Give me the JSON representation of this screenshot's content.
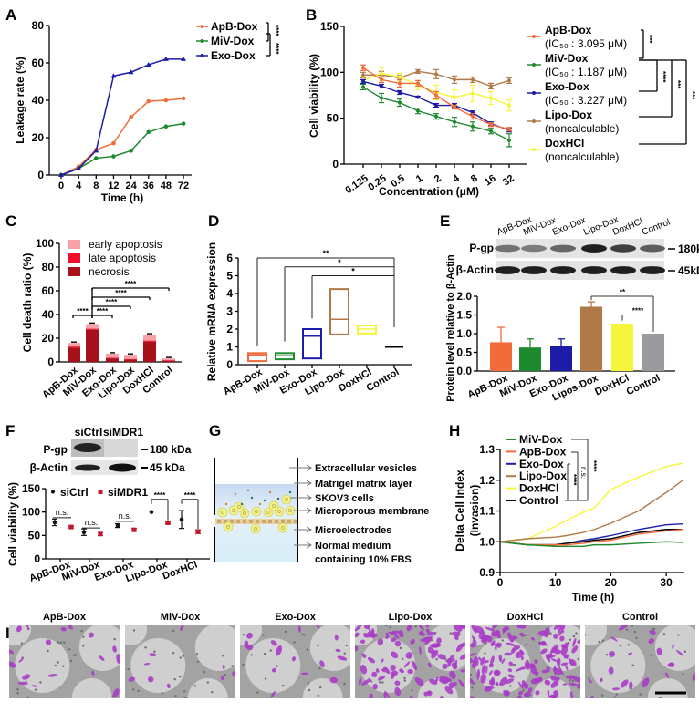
{
  "panel_labels": {
    "A": "A",
    "B": "B",
    "C": "C",
    "D": "D",
    "E": "E",
    "F": "F",
    "G": "G",
    "H": "H",
    "I": "I"
  },
  "colors": {
    "ApB-Dox": "#f26b3a",
    "MiV-Dox": "#1e8a2e",
    "Exo-Dox": "#1c1ca8",
    "Lipo-Dox": "#b07a48",
    "DoxHCl": "#f5f53a",
    "Control": "#000000",
    "Control_bar": "#9a9a9f",
    "early": "#f7a1a8",
    "late": "#f0102e",
    "necrosis": "#a8101c",
    "siCtrl": "#111111",
    "siMDR1": "#c0182c",
    "stain": "#a83cc8"
  },
  "chart_data": [
    {
      "type": "line",
      "panel": "A",
      "categories": [
        "0",
        "4",
        "8",
        "12",
        "24",
        "36",
        "48",
        "72"
      ],
      "xlabel": "Time (h)",
      "ylabel": "Leakage rate (%)",
      "ylim": [
        0,
        80
      ],
      "yticks": [
        0,
        20,
        40,
        60,
        80
      ],
      "series": [
        {
          "name": "ApB-Dox",
          "values": [
            0,
            4.5,
            13.5,
            17,
            31,
            39.5,
            40,
            41
          ]
        },
        {
          "name": "MiV-Dox",
          "values": [
            0,
            3.5,
            9,
            10,
            13,
            23,
            26,
            27.5
          ]
        },
        {
          "name": "Exo-Dox",
          "values": [
            0,
            3.5,
            13,
            53,
            55,
            59,
            62,
            62
          ]
        }
      ],
      "significance": [
        "****",
        "****"
      ]
    },
    {
      "type": "line",
      "panel": "B",
      "categories": [
        "0.125",
        "0.25",
        "0.5",
        "1",
        "2",
        "4",
        "8",
        "16",
        "32"
      ],
      "xlabel": "Concentration (μM)",
      "ylabel": "Cell viability (%)",
      "ylim": [
        0,
        150
      ],
      "yticks": [
        0,
        50,
        100,
        150
      ],
      "series": [
        {
          "name": "ApB-Dox",
          "note": "(IC₅₀ : 3.095 μM)",
          "values": [
            105,
            92,
            88,
            88,
            75,
            62,
            52,
            43,
            38
          ],
          "errors": [
            3,
            3,
            4,
            3,
            4,
            2,
            3,
            2,
            2
          ]
        },
        {
          "name": "MiV-Dox",
          "note": "(IC₅₀ : 1.187 μM)",
          "values": [
            84,
            72,
            67,
            58,
            52,
            46,
            41,
            36,
            26
          ],
          "errors": [
            3,
            5,
            4,
            3,
            3,
            5,
            5,
            3,
            7
          ]
        },
        {
          "name": "Exo-Dox",
          "note": "(IC₅₀ : 3.227 μM)",
          "values": [
            90,
            85,
            78,
            73,
            64,
            64,
            56,
            44,
            37
          ],
          "errors": [
            2,
            2,
            2,
            1,
            2,
            2,
            2,
            2,
            2
          ]
        },
        {
          "name": "Lipo-Dox",
          "note": "(noncalculable)",
          "values": [
            97,
            97,
            94,
            101,
            98,
            92,
            92,
            85,
            91
          ],
          "errors": [
            3,
            4,
            3,
            2,
            5,
            4,
            3,
            3,
            3
          ]
        },
        {
          "name": "DoxHCl",
          "note": "(noncalculable)",
          "values": [
            91,
            99,
            95,
            86,
            78,
            73,
            77,
            72,
            64
          ],
          "errors": [
            4,
            6,
            4,
            5,
            8,
            8,
            9,
            7,
            6
          ]
        }
      ],
      "significance": [
        "***",
        "****",
        "***",
        "***"
      ]
    },
    {
      "type": "bar",
      "stacked": true,
      "panel": "C",
      "categories": [
        "ApB-Dox",
        "MiV-Dox",
        "Exo-Dox",
        "Lipo-Dox",
        "DoxHCl",
        "Control"
      ],
      "ylabel": "Cell death ratio (%)",
      "ylim": [
        0,
        100
      ],
      "yticks": [
        0,
        20,
        40,
        60,
        80,
        100
      ],
      "series": [
        {
          "name": "necrosis",
          "values": [
            12,
            27,
            3,
            2,
            17,
            1
          ]
        },
        {
          "name": "late apoptosis",
          "values": [
            1,
            1,
            0.5,
            0.5,
            1,
            0.5
          ]
        },
        {
          "name": "early apoptosis",
          "values": [
            3,
            4,
            3.5,
            3.5,
            5,
            1.5
          ]
        }
      ],
      "legend_order": [
        "early apoptosis",
        "late apoptosis",
        "necrosis"
      ],
      "significance": [
        "****",
        "****",
        "****",
        "****",
        "****"
      ]
    },
    {
      "type": "bar",
      "style": "floating",
      "panel": "D",
      "categories": [
        "ApB-Dox",
        "MiV-Dox",
        "Exo-Dox",
        "Lipo-Dox",
        "DoxHCl",
        "Control"
      ],
      "ylabel": "Relative mRNA expression",
      "ylim": [
        0,
        6
      ],
      "yticks": [
        0,
        1,
        2,
        3,
        4,
        5,
        6
      ],
      "min": [
        0.2,
        0.3,
        0.35,
        1.7,
        1.75,
        1.0
      ],
      "max": [
        0.65,
        0.65,
        2.0,
        4.25,
        2.2,
        1.0
      ],
      "line": [
        0.55,
        0.5,
        1.6,
        2.55,
        2.0,
        1.0
      ],
      "significance": [
        "**",
        "*",
        "*"
      ]
    },
    {
      "type": "bar",
      "panel": "E",
      "categories": [
        "ApB-Dox",
        "MiV-Dox",
        "Exo-Dox",
        "Lipos-Dox",
        "DoxHCl",
        "Control"
      ],
      "blot_lanes": [
        "ApB-Dox",
        "MiV-Dox",
        "Exo-Dox",
        "Lipo-Dox",
        "DoxHCl",
        "Control"
      ],
      "blot_rows": [
        {
          "label": "P-gp",
          "size": "180kDa",
          "intensity": [
            0.55,
            0.5,
            0.6,
            0.95,
            0.8,
            0.65
          ]
        },
        {
          "label": "β-Actin",
          "size": "45kDa",
          "intensity": [
            0.95,
            0.95,
            0.95,
            0.95,
            0.95,
            0.95
          ]
        }
      ],
      "ylabel": "Protein level relative to β-Actin",
      "ylim": [
        0,
        2.0
      ],
      "yticks": [
        "0.0",
        "0.5",
        "1.0",
        "1.5",
        "2.0"
      ],
      "values": [
        0.77,
        0.63,
        0.68,
        1.72,
        1.27,
        1.0
      ],
      "errors": [
        0.4,
        0.23,
        0.18,
        0.13,
        0,
        0
      ],
      "significance": [
        "**",
        "****"
      ]
    },
    {
      "type": "scatter",
      "panel": "F",
      "categories": [
        "ApB-Dox",
        "MiV-Dox",
        "Exo-Dox",
        "Lipo-Dox",
        "DoxHCl"
      ],
      "blot_lanes": [
        "siCtrl",
        "siMDR1"
      ],
      "blot_rows": [
        {
          "label": "P-gp",
          "size": "180 kDa"
        },
        {
          "label": "β-Actin",
          "size": "45 kDa"
        }
      ],
      "ylabel": "Cell viability (%)",
      "ylim": [
        0,
        150
      ],
      "yticks": [
        0,
        50,
        100,
        150
      ],
      "series": [
        {
          "name": "siCtrl",
          "values": [
            78,
            57,
            71,
            100,
            84
          ],
          "errors": [
            7,
            7,
            4,
            0,
            19
          ]
        },
        {
          "name": "siMDR1",
          "values": [
            68,
            53,
            62,
            77,
            58
          ],
          "errors": [
            2,
            3,
            3,
            2,
            4
          ]
        }
      ],
      "significance": [
        "n.s.",
        "n.s.",
        "n.s.",
        "****",
        "****"
      ]
    },
    {
      "type": "line",
      "panel": "H",
      "xlabel": "Time (h)",
      "ylabel": "Delta Cell Index",
      "ylabel2": "(Invasion)",
      "xlim": [
        0,
        33
      ],
      "xticks": [
        0,
        10,
        20,
        30
      ],
      "ylim": [
        0.9,
        1.3
      ],
      "yticks": [
        "0.9",
        "1.0",
        "1.1",
        "1.2",
        "1.3"
      ],
      "x": [
        0,
        5,
        10,
        12,
        15,
        17,
        20,
        25,
        30,
        33
      ],
      "series": [
        {
          "name": "MiV-Dox",
          "values": [
            1.0,
            0.99,
            0.985,
            0.985,
            0.985,
            0.99,
            0.99,
            0.995,
            1.0,
            0.998
          ]
        },
        {
          "name": "ApB-Dox",
          "values": [
            1.0,
            0.99,
            0.99,
            0.99,
            0.995,
            1.0,
            1.005,
            1.025,
            1.035,
            1.04
          ]
        },
        {
          "name": "Exo-Dox",
          "values": [
            1.0,
            0.99,
            0.99,
            0.995,
            1.005,
            1.01,
            1.02,
            1.04,
            1.055,
            1.058
          ]
        },
        {
          "name": "Lipo-Dox",
          "values": [
            1.0,
            1.01,
            1.015,
            1.02,
            1.03,
            1.04,
            1.06,
            1.1,
            1.16,
            1.2
          ]
        },
        {
          "name": "DoxHCl",
          "values": [
            1.0,
            1.01,
            1.05,
            1.07,
            1.095,
            1.11,
            1.17,
            1.21,
            1.245,
            1.255
          ]
        },
        {
          "name": "Control",
          "values": [
            1.0,
            0.99,
            0.99,
            0.995,
            1.0,
            1.005,
            1.01,
            1.03,
            1.04,
            1.04
          ]
        }
      ],
      "significance": [
        "****",
        "n.s.",
        "****"
      ]
    }
  ],
  "diagram_g": {
    "labels": [
      "Extracellular vesicles",
      "Matrigel matrix layer",
      "SKOV3 cells",
      "Microporous membrane",
      "Microelectrodes",
      "Normal medium",
      "containing 10% FBS"
    ]
  },
  "images_i": {
    "titles": [
      "ApB-Dox",
      "MiV-Dox",
      "Exo-Dox",
      "Lipo-Dox",
      "DoxHCl",
      "Control"
    ],
    "stain_coverage": [
      0.1,
      0.05,
      0.09,
      0.55,
      0.85,
      0.12
    ]
  }
}
